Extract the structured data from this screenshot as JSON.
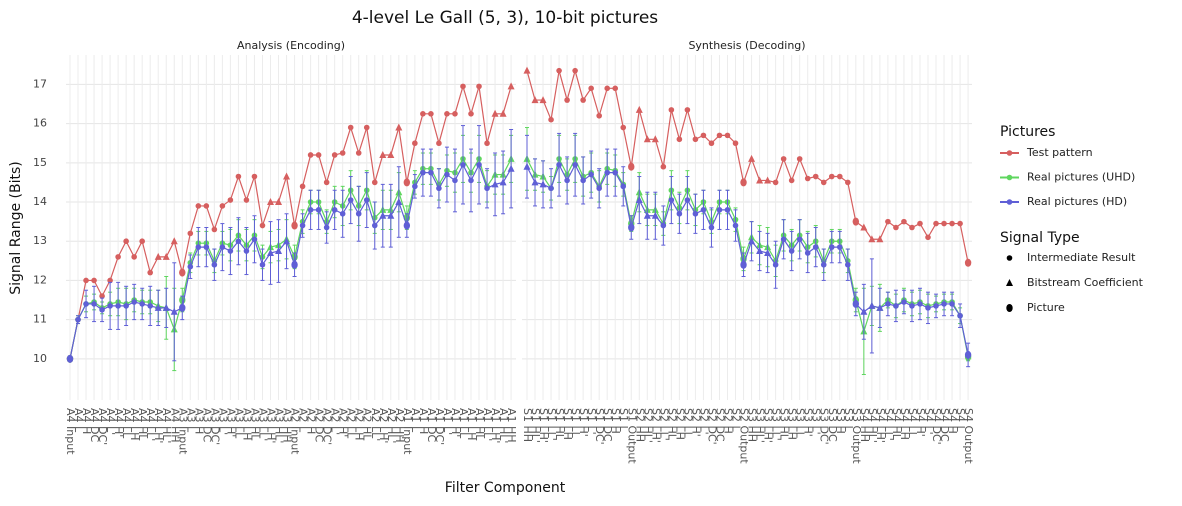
{
  "chart_data": {
    "type": "line",
    "title": "4-level Le Gall (5, 3), 10-bit pictures",
    "x_label": "Filter Component",
    "y_label": "Signal Range (Bits)",
    "ylim": [
      8.95,
      17.75
    ],
    "yticks": [
      10,
      11,
      12,
      13,
      14,
      15,
      16,
      17
    ],
    "grid": true,
    "legend_title": "Pictures",
    "signal_type_title": "Signal Type",
    "signal_type_legend": [
      "Intermediate Result",
      "Bitstream Coefficient",
      "Picture"
    ],
    "facets": [
      {
        "title": "Analysis (Encoding)",
        "categories": [
          "A4 Input",
          "A4 L",
          "A4 H",
          "A4 DC",
          "A4 DC'",
          "A4 L'",
          "A4 H'",
          "A4 LL",
          "A4 LH",
          "A4 HL",
          "A4 LL'",
          "A4 LH'",
          "A4 HL'",
          "A4 HH",
          "A3 Input",
          "A3 L",
          "A3 H",
          "A3 DC",
          "A3 DC'",
          "A3 L'",
          "A3 H'",
          "A3 LL",
          "A3 LH",
          "A3 HL",
          "A3 LL'",
          "A3 LH'",
          "A3 HL'",
          "A3 HH",
          "A2 Input",
          "A2 L",
          "A2 H",
          "A2 DC",
          "A2 DC'",
          "A2 L'",
          "A2 H'",
          "A2 LL",
          "A2 LH",
          "A2 HL",
          "A2 LL'",
          "A2 LH'",
          "A2 HL'",
          "A2 HH",
          "A1 Input",
          "A1 L",
          "A1 H",
          "A1 DC",
          "A1 DC'",
          "A1 L'",
          "A1 H'",
          "A1 LL",
          "A1 LH",
          "A1 HL",
          "A1 LL'",
          "A1 LH'",
          "A1 HL'",
          "A1 HH"
        ],
        "signal_types": [
          "Picture",
          "Intermediate Result",
          "Intermediate Result",
          "Intermediate Result",
          "Intermediate Result",
          "Intermediate Result",
          "Intermediate Result",
          "Intermediate Result",
          "Intermediate Result",
          "Intermediate Result",
          "Intermediate Result",
          "Bitstream Coefficient",
          "Bitstream Coefficient",
          "Bitstream Coefficient",
          "Picture",
          "Intermediate Result",
          "Intermediate Result",
          "Intermediate Result",
          "Intermediate Result",
          "Intermediate Result",
          "Intermediate Result",
          "Intermediate Result",
          "Intermediate Result",
          "Intermediate Result",
          "Intermediate Result",
          "Bitstream Coefficient",
          "Bitstream Coefficient",
          "Bitstream Coefficient",
          "Picture",
          "Intermediate Result",
          "Intermediate Result",
          "Intermediate Result",
          "Intermediate Result",
          "Intermediate Result",
          "Intermediate Result",
          "Intermediate Result",
          "Intermediate Result",
          "Intermediate Result",
          "Intermediate Result",
          "Bitstream Coefficient",
          "Bitstream Coefficient",
          "Bitstream Coefficient",
          "Picture",
          "Intermediate Result",
          "Intermediate Result",
          "Intermediate Result",
          "Intermediate Result",
          "Intermediate Result",
          "Intermediate Result",
          "Intermediate Result",
          "Intermediate Result",
          "Intermediate Result",
          "Intermediate Result",
          "Bitstream Coefficient",
          "Bitstream Coefficient",
          "Bitstream Coefficient"
        ],
        "series": [
          {
            "name": "Test pattern",
            "color": "#d65f5f",
            "values": [
              10,
              11,
              12,
              12,
              11.6,
              12,
              12.6,
              13,
              12.6,
              13,
              12.2,
              12.6,
              12.6,
              13,
              12.2,
              13.2,
              13.9,
              13.9,
              13.3,
              13.9,
              14.05,
              14.65,
              14.05,
              14.65,
              13.4,
              14,
              14,
              14.65,
              13.4,
              14.4,
              15.2,
              15.2,
              14.5,
              15.2,
              15.25,
              15.9,
              15.25,
              15.9,
              14.5,
              15.2,
              15.2,
              15.9,
              14.5,
              15.5,
              16.25,
              16.25,
              15.5,
              16.25,
              16.25,
              16.95,
              16.25,
              16.95,
              15.5,
              16.25,
              16.25,
              16.95
            ]
          },
          {
            "name": "Real pictures (UHD)",
            "color": "#5fd65f",
            "values": [
              10,
              11,
              11.4,
              11.45,
              11.3,
              11.4,
              11.45,
              11.4,
              11.5,
              11.45,
              11.45,
              11.35,
              11.3,
              10.75,
              11.5,
              12.45,
              12.95,
              12.95,
              12.5,
              12.95,
              12.9,
              13.15,
              12.9,
              13.15,
              12.6,
              12.85,
              12.9,
              13.05,
              12.6,
              13.5,
              14,
              14,
              13.5,
              14,
              13.9,
              14.3,
              13.9,
              14.3,
              13.6,
              13.8,
              13.8,
              14.25,
              13.6,
              14.5,
              14.85,
              14.85,
              14.45,
              14.8,
              14.75,
              15.1,
              14.75,
              15.1,
              14.4,
              14.7,
              14.7,
              15.1
            ],
            "errors": [
              0,
              0.1,
              0.2,
              0.2,
              0.15,
              0.3,
              0.35,
              0.4,
              0.3,
              0.3,
              0.3,
              0.4,
              0.8,
              1.05,
              0.3,
              0.25,
              0.3,
              0.3,
              0.3,
              0.3,
              0.4,
              0.4,
              0.4,
              0.4,
              0.3,
              0.4,
              0.4,
              0.5,
              0.3,
              0.3,
              0.3,
              0.3,
              0.3,
              0.4,
              0.5,
              0.5,
              0.5,
              0.5,
              0.4,
              0.5,
              0.5,
              0.5,
              0.3,
              0.3,
              0.4,
              0.4,
              0.4,
              0.4,
              0.5,
              0.6,
              0.5,
              0.6,
              0.4,
              0.5,
              0.5,
              0.6
            ]
          },
          {
            "name": "Real pictures (HD)",
            "color": "#5f5fd6",
            "values": [
              10,
              11,
              11.4,
              11.4,
              11.25,
              11.35,
              11.35,
              11.35,
              11.45,
              11.4,
              11.35,
              11.3,
              11.3,
              11.2,
              11.3,
              12.35,
              12.85,
              12.85,
              12.4,
              12.85,
              12.75,
              13,
              12.75,
              13.05,
              12.4,
              12.7,
              12.75,
              13,
              12.4,
              13.4,
              13.8,
              13.8,
              13.35,
              13.8,
              13.7,
              14.05,
              13.7,
              14.05,
              13.4,
              13.65,
              13.65,
              14,
              13.4,
              14.4,
              14.75,
              14.75,
              14.35,
              14.7,
              14.55,
              14.95,
              14.55,
              14.95,
              14.35,
              14.45,
              14.5,
              14.85
            ],
            "errors": [
              0,
              0.1,
              0.35,
              0.45,
              0.3,
              0.6,
              0.6,
              0.5,
              0.45,
              0.4,
              0.5,
              0.45,
              0.5,
              1.25,
              0.3,
              0.3,
              0.5,
              0.5,
              0.4,
              0.6,
              0.6,
              0.6,
              0.6,
              0.6,
              0.4,
              0.8,
              0.8,
              0.7,
              0.3,
              0.3,
              0.5,
              0.5,
              0.4,
              0.5,
              0.6,
              0.6,
              0.7,
              0.7,
              0.6,
              0.8,
              0.8,
              0.9,
              0.3,
              0.3,
              0.6,
              0.6,
              0.5,
              0.7,
              0.8,
              1,
              0.8,
              1,
              0.5,
              0.8,
              0.8,
              1
            ]
          }
        ]
      },
      {
        "title": "Synthesis (Decoding)",
        "categories": [
          "S1 HH",
          "S1 HL'",
          "S1 LH'",
          "S1 LL'",
          "S1 HL",
          "S1 LH",
          "S1 LL",
          "S1 H'",
          "S1 L'",
          "S1 DC'",
          "S1 DC",
          "S1 H",
          "S1 L",
          "S1 Output",
          "S2 HH",
          "S2 HL'",
          "S2 LH'",
          "S2 LL'",
          "S2 HL",
          "S2 LH",
          "S2 LL",
          "S2 H'",
          "S2 L'",
          "S2 DC'",
          "S2 DC",
          "S2 H",
          "S2 L",
          "S2 Output",
          "S3 HH",
          "S3 HL'",
          "S3 LH'",
          "S3 LL'",
          "S3 HL",
          "S3 LH",
          "S3 LL",
          "S3 H'",
          "S3 L'",
          "S3 DC'",
          "S3 DC",
          "S3 H",
          "S3 L",
          "S3 Output",
          "S4 HH",
          "S4 HL'",
          "S4 LH'",
          "S4 LL'",
          "S4 HL",
          "S4 LH",
          "S4 LL",
          "S4 H'",
          "S4 L'",
          "S4 DC'",
          "S4 DC",
          "S4 H",
          "S4 L",
          "S4 Output"
        ],
        "signal_types": [
          "Bitstream Coefficient",
          "Bitstream Coefficient",
          "Bitstream Coefficient",
          "Intermediate Result",
          "Intermediate Result",
          "Intermediate Result",
          "Intermediate Result",
          "Intermediate Result",
          "Intermediate Result",
          "Intermediate Result",
          "Intermediate Result",
          "Intermediate Result",
          "Intermediate Result",
          "Picture",
          "Bitstream Coefficient",
          "Bitstream Coefficient",
          "Bitstream Coefficient",
          "Intermediate Result",
          "Intermediate Result",
          "Intermediate Result",
          "Intermediate Result",
          "Intermediate Result",
          "Intermediate Result",
          "Intermediate Result",
          "Intermediate Result",
          "Intermediate Result",
          "Intermediate Result",
          "Picture",
          "Bitstream Coefficient",
          "Bitstream Coefficient",
          "Bitstream Coefficient",
          "Intermediate Result",
          "Intermediate Result",
          "Intermediate Result",
          "Intermediate Result",
          "Intermediate Result",
          "Intermediate Result",
          "Intermediate Result",
          "Intermediate Result",
          "Intermediate Result",
          "Intermediate Result",
          "Picture",
          "Bitstream Coefficient",
          "Bitstream Coefficient",
          "Bitstream Coefficient",
          "Intermediate Result",
          "Intermediate Result",
          "Intermediate Result",
          "Intermediate Result",
          "Intermediate Result",
          "Intermediate Result",
          "Intermediate Result",
          "Intermediate Result",
          "Intermediate Result",
          "Intermediate Result",
          "Picture"
        ],
        "series": [
          {
            "name": "Test pattern",
            "color": "#d65f5f",
            "values": [
              17.35,
              16.6,
              16.6,
              16.1,
              17.35,
              16.6,
              17.35,
              16.6,
              16.9,
              16.2,
              16.9,
              16.9,
              15.9,
              14.9,
              16.35,
              15.6,
              15.6,
              14.9,
              16.35,
              15.6,
              16.35,
              15.6,
              15.7,
              15.5,
              15.7,
              15.7,
              15.5,
              14.5,
              15.1,
              14.55,
              14.55,
              14.5,
              15.1,
              14.55,
              15.1,
              14.6,
              14.65,
              14.5,
              14.65,
              14.65,
              14.5,
              13.5,
              13.35,
              13.05,
              13.05,
              13.5,
              13.35,
              13.5,
              13.35,
              13.45,
              13.1,
              13.45,
              13.45,
              13.45,
              13.45,
              12.45
            ]
          },
          {
            "name": "Real pictures (UHD)",
            "color": "#5fd65f",
            "values": [
              15.1,
              14.7,
              14.65,
              14.35,
              15.1,
              14.7,
              15.1,
              14.65,
              14.75,
              14.4,
              14.85,
              14.8,
              14.45,
              13.45,
              14.25,
              13.8,
              13.8,
              13.45,
              14.3,
              13.85,
              14.3,
              13.8,
              14,
              13.5,
              14,
              14,
              13.55,
              12.55,
              13.1,
              12.9,
              12.85,
              12.5,
              13.15,
              12.9,
              13.15,
              12.85,
              13,
              12.5,
              13,
              13,
              12.5,
              11.5,
              10.7,
              11.35,
              11.3,
              11.5,
              11.35,
              11.5,
              11.4,
              11.45,
              11.35,
              11.4,
              11.45,
              11.45,
              11.1,
              10.05
            ],
            "errors": [
              0.8,
              0.4,
              0.4,
              0.3,
              0.6,
              0.4,
              0.6,
              0.5,
              0.5,
              0.4,
              0.4,
              0.4,
              0.3,
              0.2,
              0.5,
              0.4,
              0.4,
              0.3,
              0.5,
              0.4,
              0.5,
              0.4,
              0.3,
              0.3,
              0.3,
              0.3,
              0.3,
              0.3,
              0.4,
              0.5,
              0.5,
              0.4,
              0.4,
              0.4,
              0.4,
              0.4,
              0.4,
              0.3,
              0.3,
              0.3,
              0.3,
              0.3,
              1.1,
              0.5,
              0.6,
              0.2,
              0.3,
              0.3,
              0.3,
              0.3,
              0.3,
              0.2,
              0.2,
              0.2,
              0.2,
              0.1
            ]
          },
          {
            "name": "Real pictures (HD)",
            "color": "#5f5fd6",
            "values": [
              14.9,
              14.5,
              14.45,
              14.35,
              14.95,
              14.55,
              14.95,
              14.55,
              14.7,
              14.35,
              14.75,
              14.75,
              14.4,
              13.35,
              14.05,
              13.65,
              13.65,
              13.4,
              14.05,
              13.7,
              14.05,
              13.7,
              13.8,
              13.35,
              13.8,
              13.8,
              13.4,
              12.4,
              13,
              12.75,
              12.7,
              12.4,
              13.05,
              12.75,
              13.05,
              12.7,
              12.85,
              12.4,
              12.85,
              12.85,
              12.4,
              11.4,
              11.2,
              11.35,
              11.3,
              11.4,
              11.35,
              11.45,
              11.35,
              11.4,
              11.3,
              11.35,
              11.4,
              11.4,
              11.1,
              10.1
            ],
            "errors": [
              0.8,
              0.6,
              0.6,
              0.5,
              0.8,
              0.6,
              0.8,
              0.6,
              0.6,
              0.5,
              0.6,
              0.6,
              0.5,
              0.3,
              0.6,
              0.6,
              0.6,
              0.5,
              0.6,
              0.5,
              0.6,
              0.5,
              0.5,
              0.5,
              0.5,
              0.5,
              0.4,
              0.3,
              0.5,
              0.5,
              0.5,
              0.6,
              0.5,
              0.5,
              0.5,
              0.5,
              0.5,
              0.4,
              0.4,
              0.4,
              0.4,
              0.3,
              0.7,
              1.2,
              0.5,
              0.3,
              0.4,
              0.3,
              0.4,
              0.4,
              0.4,
              0.3,
              0.3,
              0.3,
              0.3,
              0.3
            ]
          }
        ]
      }
    ]
  }
}
